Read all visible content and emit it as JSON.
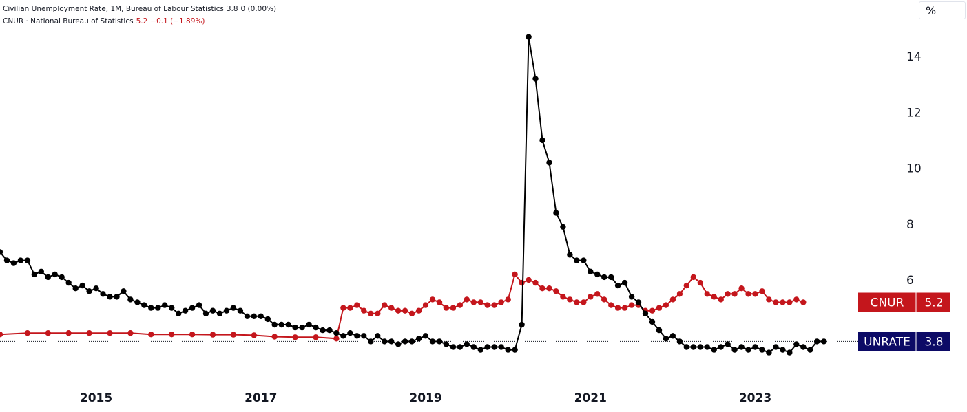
{
  "legend": {
    "series1_name": "Civilian Unemployment Rate, 1M, Bureau of Labour Statistics",
    "series1_value": "3.8",
    "series1_change": "0 (0.00%)",
    "series2_name": "CNUR · National Bureau of Statistics",
    "series2_value": "5.2",
    "series2_change": "−0.1 (−1.89%)"
  },
  "unit_button": "%",
  "colors": {
    "unrate": "#000000",
    "cnur": "#c4161c",
    "unrate_tag": "#0c0a66",
    "cnur_tag": "#c4161c"
  },
  "tags": {
    "cnur": {
      "name": "CNUR",
      "value": "5.2"
    },
    "unrate": {
      "name": "UNRATE",
      "value": "3.8"
    }
  },
  "chart_data": {
    "type": "line",
    "ylim": [
      2.5,
      15.5
    ],
    "yticks": [
      "6",
      "8",
      "10",
      "12",
      "14"
    ],
    "xticks": [
      "2015",
      "2017",
      "2019",
      "2021",
      "2023"
    ],
    "xlim": [
      "2013-11",
      "2024-05"
    ],
    "series": [
      {
        "name": "UNRATE",
        "start": "2014-01",
        "values": [
          6.6,
          6.7,
          6.7,
          6.2,
          6.3,
          6.1,
          6.2,
          6.1,
          5.9,
          5.7,
          5.8,
          5.6,
          5.7,
          5.5,
          5.4,
          5.4,
          5.6,
          5.3,
          5.2,
          5.1,
          5.0,
          5.0,
          5.1,
          5.0,
          4.8,
          4.9,
          5.0,
          5.1,
          4.8,
          4.9,
          4.8,
          4.9,
          5.0,
          4.9,
          4.7,
          4.7,
          4.7,
          4.6,
          4.4,
          4.4,
          4.4,
          4.3,
          4.3,
          4.4,
          4.3,
          4.2,
          4.2,
          4.1,
          4.0,
          4.1,
          4.0,
          4.0,
          3.8,
          4.0,
          3.8,
          3.8,
          3.7,
          3.8,
          3.8,
          3.9,
          4.0,
          3.8,
          3.8,
          3.7,
          3.6,
          3.6,
          3.7,
          3.6,
          3.5,
          3.6,
          3.6,
          3.6,
          3.5,
          3.5,
          4.4,
          14.7,
          13.2,
          11.0,
          10.2,
          8.4,
          7.9,
          6.9,
          6.7,
          6.7,
          6.3,
          6.2,
          6.1,
          6.1,
          5.8,
          5.9,
          5.4,
          5.2,
          4.8,
          4.5,
          4.2,
          3.9,
          4.0,
          3.8,
          3.6,
          3.6,
          3.6,
          3.6,
          3.5,
          3.6,
          3.7,
          3.5,
          3.6,
          3.5,
          3.6,
          3.5,
          3.4,
          3.6,
          3.5,
          3.4,
          3.7,
          3.6,
          3.5,
          3.8,
          3.8
        ],
        "leading_points": [
          [
            "2013-11",
            7.0
          ],
          [
            "2013-12",
            6.7
          ]
        ]
      },
      {
        "name": "CNUR",
        "points": [
          [
            "2013-11",
            4.05
          ],
          [
            "2014-03",
            4.1
          ],
          [
            "2014-06",
            4.1
          ],
          [
            "2014-09",
            4.1
          ],
          [
            "2014-12",
            4.1
          ],
          [
            "2015-03",
            4.1
          ],
          [
            "2015-06",
            4.1
          ],
          [
            "2015-09",
            4.05
          ],
          [
            "2015-12",
            4.05
          ],
          [
            "2016-03",
            4.05
          ],
          [
            "2016-06",
            4.04
          ],
          [
            "2016-09",
            4.04
          ],
          [
            "2016-12",
            4.02
          ],
          [
            "2017-03",
            3.97
          ],
          [
            "2017-06",
            3.95
          ],
          [
            "2017-09",
            3.95
          ],
          [
            "2017-12",
            3.9
          ],
          [
            "2018-01",
            5.0
          ],
          [
            "2018-02",
            5.0
          ],
          [
            "2018-03",
            5.1
          ],
          [
            "2018-04",
            4.9
          ],
          [
            "2018-05",
            4.8
          ],
          [
            "2018-06",
            4.8
          ],
          [
            "2018-07",
            5.1
          ],
          [
            "2018-08",
            5.0
          ],
          [
            "2018-09",
            4.9
          ],
          [
            "2018-10",
            4.9
          ],
          [
            "2018-11",
            4.8
          ],
          [
            "2018-12",
            4.9
          ],
          [
            "2019-01",
            5.1
          ],
          [
            "2019-02",
            5.3
          ],
          [
            "2019-03",
            5.2
          ],
          [
            "2019-04",
            5.0
          ],
          [
            "2019-05",
            5.0
          ],
          [
            "2019-06",
            5.1
          ],
          [
            "2019-07",
            5.3
          ],
          [
            "2019-08",
            5.2
          ],
          [
            "2019-09",
            5.2
          ],
          [
            "2019-10",
            5.1
          ],
          [
            "2019-11",
            5.1
          ],
          [
            "2019-12",
            5.2
          ],
          [
            "2020-01",
            5.3
          ],
          [
            "2020-02",
            6.2
          ],
          [
            "2020-03",
            5.9
          ],
          [
            "2020-04",
            6.0
          ],
          [
            "2020-05",
            5.9
          ],
          [
            "2020-06",
            5.7
          ],
          [
            "2020-07",
            5.7
          ],
          [
            "2020-08",
            5.6
          ],
          [
            "2020-09",
            5.4
          ],
          [
            "2020-10",
            5.3
          ],
          [
            "2020-11",
            5.2
          ],
          [
            "2020-12",
            5.2
          ],
          [
            "2021-01",
            5.4
          ],
          [
            "2021-02",
            5.5
          ],
          [
            "2021-03",
            5.3
          ],
          [
            "2021-04",
            5.1
          ],
          [
            "2021-05",
            5.0
          ],
          [
            "2021-06",
            5.0
          ],
          [
            "2021-07",
            5.1
          ],
          [
            "2021-08",
            5.1
          ],
          [
            "2021-09",
            4.9
          ],
          [
            "2021-10",
            4.9
          ],
          [
            "2021-11",
            5.0
          ],
          [
            "2021-12",
            5.1
          ],
          [
            "2022-01",
            5.3
          ],
          [
            "2022-02",
            5.5
          ],
          [
            "2022-03",
            5.8
          ],
          [
            "2022-04",
            6.1
          ],
          [
            "2022-05",
            5.9
          ],
          [
            "2022-06",
            5.5
          ],
          [
            "2022-07",
            5.4
          ],
          [
            "2022-08",
            5.3
          ],
          [
            "2022-09",
            5.5
          ],
          [
            "2022-10",
            5.5
          ],
          [
            "2022-11",
            5.7
          ],
          [
            "2022-12",
            5.5
          ],
          [
            "2023-01",
            5.5
          ],
          [
            "2023-02",
            5.6
          ],
          [
            "2023-03",
            5.3
          ],
          [
            "2023-04",
            5.2
          ],
          [
            "2023-05",
            5.2
          ],
          [
            "2023-06",
            5.2
          ],
          [
            "2023-07",
            5.3
          ],
          [
            "2023-08",
            5.2
          ]
        ]
      }
    ]
  }
}
